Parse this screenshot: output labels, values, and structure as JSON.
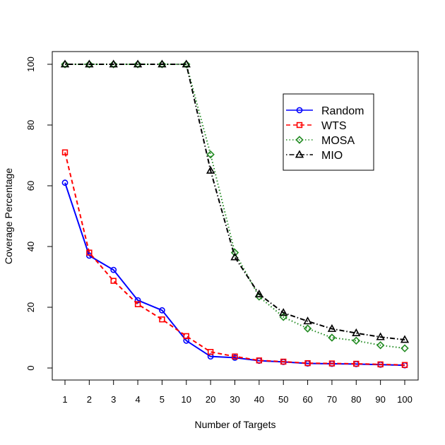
{
  "chart_data": {
    "type": "line",
    "title": "",
    "xlabel": "Number of Targets",
    "ylabel": "Coverage Percentage",
    "categories": [
      "1",
      "2",
      "3",
      "4",
      "5",
      "10",
      "20",
      "30",
      "40",
      "50",
      "60",
      "70",
      "80",
      "90",
      "100"
    ],
    "ylim": [
      0,
      100
    ],
    "yticks": [
      "0",
      "20",
      "40",
      "60",
      "80",
      "100"
    ],
    "grid": false,
    "legend_position": "top-right",
    "series": [
      {
        "name": "Random",
        "color": "#0000ff",
        "marker": "circle",
        "line_style": "solid",
        "values": [
          61,
          37,
          32.3,
          22.3,
          19,
          9,
          3.8,
          3.4,
          2.4,
          2,
          1.5,
          1.4,
          1.3,
          1.1,
          0.9
        ]
      },
      {
        "name": "WTS",
        "color": "#ff0000",
        "marker": "square",
        "line_style": "dashed",
        "values": [
          71,
          38,
          28.7,
          21,
          16,
          10.5,
          5.3,
          3.8,
          2.5,
          2.1,
          1.6,
          1.5,
          1.4,
          1.2,
          1.0
        ]
      },
      {
        "name": "MOSA",
        "color": "#228b22",
        "marker": "diamond",
        "line_style": "dotted",
        "values": [
          100,
          100,
          100,
          100,
          100,
          100,
          70.3,
          38,
          23.5,
          16.8,
          13,
          10,
          9,
          7.5,
          6.5
        ]
      },
      {
        "name": "MIO",
        "color": "#000000",
        "marker": "triangle",
        "line_style": "dotdash",
        "values": [
          100,
          100,
          100,
          100,
          100,
          100,
          65,
          36.5,
          24.3,
          18.2,
          15.4,
          12.9,
          11.5,
          10.2,
          9.3
        ]
      }
    ]
  }
}
